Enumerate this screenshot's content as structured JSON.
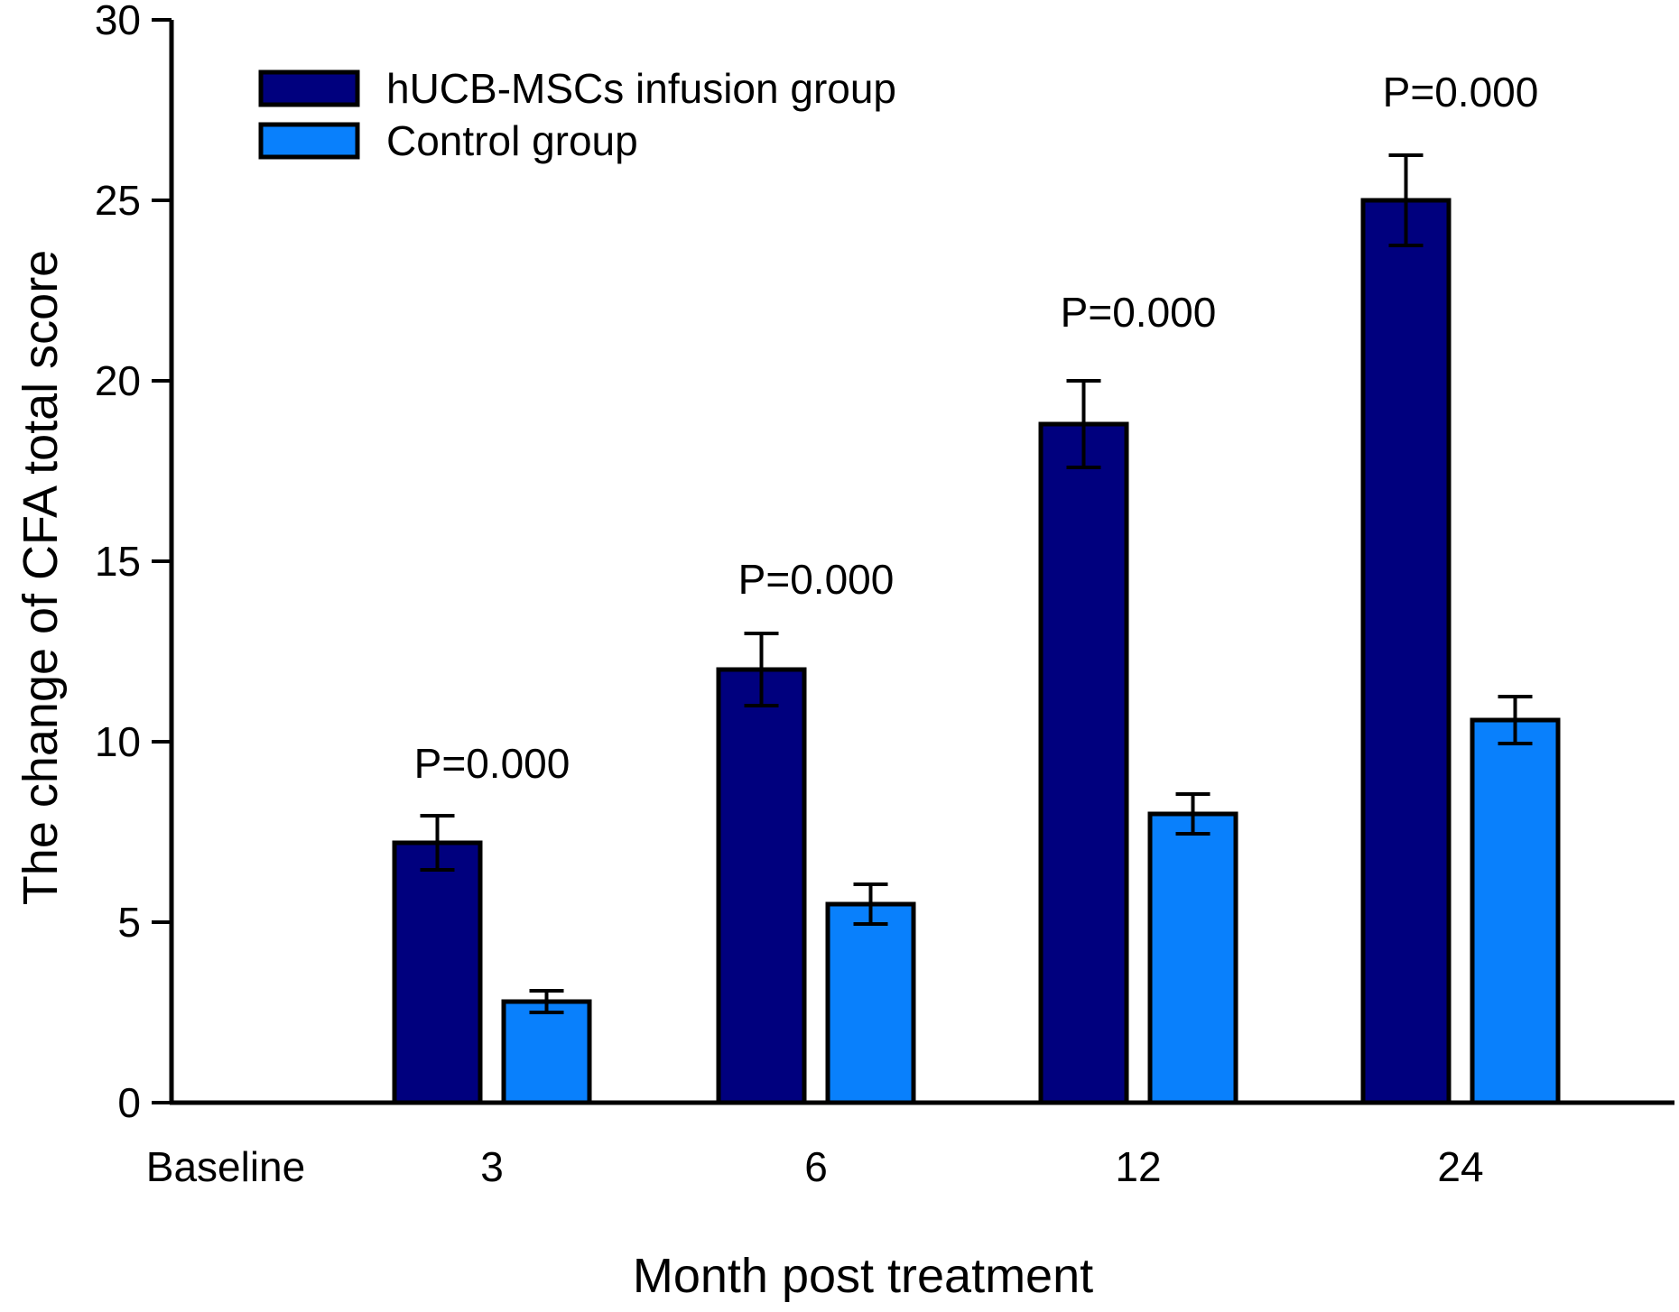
{
  "chart_data": {
    "type": "bar",
    "title": "",
    "xlabel": "Month post treatment",
    "ylabel": "The change of CFA total score",
    "categories": [
      "Baseline",
      "3",
      "6",
      "12",
      "24"
    ],
    "yticks": [
      0,
      5,
      10,
      15,
      20,
      25,
      30
    ],
    "ylim": [
      0,
      30
    ],
    "grid": false,
    "legend_position": "top-left",
    "bar_outline_color": "#000000",
    "series": [
      {
        "name": "hUCB-MSCs infusion group",
        "color": "#00007e",
        "values": [
          null,
          7.2,
          12.0,
          18.8,
          25.0
        ],
        "errors": [
          null,
          0.75,
          1.0,
          1.2,
          1.25
        ]
      },
      {
        "name": "Control group",
        "color": "#0980fc",
        "values": [
          null,
          2.8,
          5.5,
          8.0,
          10.6
        ],
        "errors": [
          null,
          0.3,
          0.55,
          0.55,
          0.65
        ]
      }
    ],
    "annotations": [
      {
        "text": "P=0.000",
        "category": "3",
        "y": 9.4
      },
      {
        "text": "P=0.000",
        "category": "6",
        "y": 14.5
      },
      {
        "text": "P=0.000",
        "category": "12",
        "y": 21.9
      },
      {
        "text": "P=0.000",
        "category": "24",
        "y": 28.0
      }
    ]
  }
}
